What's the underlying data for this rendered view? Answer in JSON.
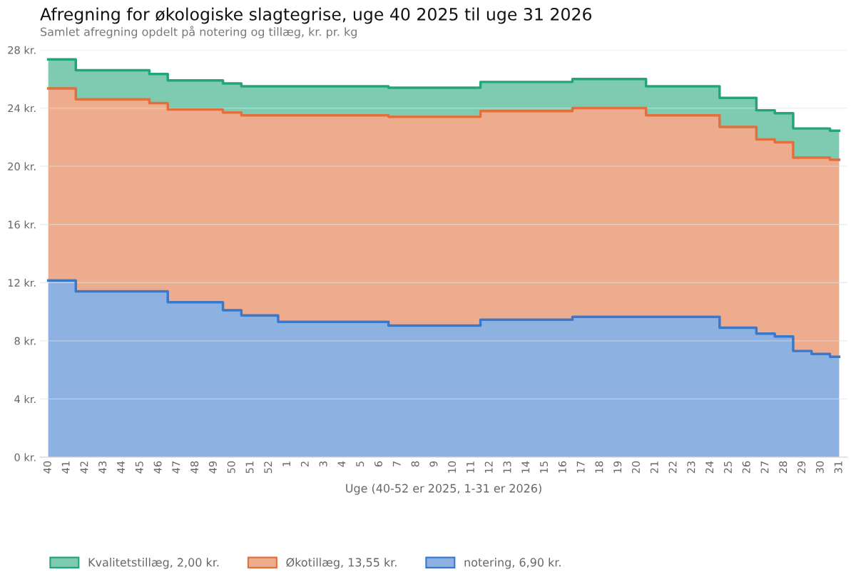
{
  "chart_data": {
    "type": "area",
    "stacked": true,
    "title": "Afregning for økologiske slagtegrise, uge 40 2025 til uge 31 2026",
    "subtitle": "Samlet afregning opdelt på notering og tillæg, kr. pr. kg",
    "xlabel": "Uge (40-52 er 2025, 1-31 er 2026)",
    "categories": [
      "40",
      "41",
      "42",
      "43",
      "44",
      "45",
      "46",
      "47",
      "48",
      "49",
      "50",
      "51",
      "52",
      "1",
      "2",
      "3",
      "4",
      "5",
      "6",
      "7",
      "8",
      "9",
      "10",
      "11",
      "12",
      "13",
      "14",
      "15",
      "16",
      "17",
      "18",
      "19",
      "20",
      "21",
      "22",
      "23",
      "24",
      "25",
      "26",
      "27",
      "28",
      "29",
      "30",
      "31"
    ],
    "series": [
      {
        "name": "notering, 6,90 kr.",
        "color": "#3a78cc",
        "values": [
          12.15,
          12.15,
          11.4,
          11.4,
          11.4,
          11.4,
          11.4,
          10.65,
          10.65,
          10.65,
          10.1,
          9.75,
          9.75,
          9.3,
          9.3,
          9.3,
          9.3,
          9.3,
          9.3,
          9.05,
          9.05,
          9.05,
          9.05,
          9.05,
          9.45,
          9.45,
          9.45,
          9.45,
          9.45,
          9.65,
          9.65,
          9.65,
          9.65,
          9.65,
          9.65,
          9.65,
          9.65,
          8.9,
          8.9,
          8.5,
          8.3,
          7.3,
          7.1,
          6.9
        ]
      },
      {
        "name": "Økotillæg, 13,55 kr.",
        "color": "#e0703d",
        "values": [
          13.2,
          13.2,
          13.2,
          13.2,
          13.2,
          13.2,
          12.95,
          13.25,
          13.25,
          13.25,
          13.6,
          13.75,
          13.75,
          14.2,
          14.2,
          14.2,
          14.2,
          14.2,
          14.2,
          14.35,
          14.35,
          14.35,
          14.35,
          14.35,
          14.35,
          14.35,
          14.35,
          14.35,
          14.35,
          14.35,
          14.35,
          14.35,
          14.35,
          13.85,
          13.85,
          13.85,
          13.85,
          13.8,
          13.8,
          13.35,
          13.35,
          13.3,
          13.5,
          13.55
        ]
      },
      {
        "name": "Kvalitetstillæg, 2,00 kr.",
        "color": "#23a57a",
        "values": [
          2,
          2,
          2,
          2,
          2,
          2,
          2,
          2,
          2,
          2,
          2,
          2,
          2,
          2,
          2,
          2,
          2,
          2,
          2,
          2,
          2,
          2,
          2,
          2,
          2,
          2,
          2,
          2,
          2,
          2,
          2,
          2,
          2,
          2,
          2,
          2,
          2,
          2,
          2,
          2,
          2,
          2,
          2,
          2
        ]
      }
    ],
    "ylim": [
      0,
      28
    ],
    "yticks": [
      {
        "value": 0,
        "label": "0 kr."
      },
      {
        "value": 4,
        "label": "4 kr."
      },
      {
        "value": 8,
        "label": "8 kr."
      },
      {
        "value": 12,
        "label": "12 kr."
      },
      {
        "value": 16,
        "label": "16 kr."
      },
      {
        "value": 20,
        "label": "20 kr."
      },
      {
        "value": 24,
        "label": "24 kr."
      },
      {
        "value": 28,
        "label": "28 kr."
      }
    ],
    "grid": "y",
    "legend": "bottom"
  }
}
